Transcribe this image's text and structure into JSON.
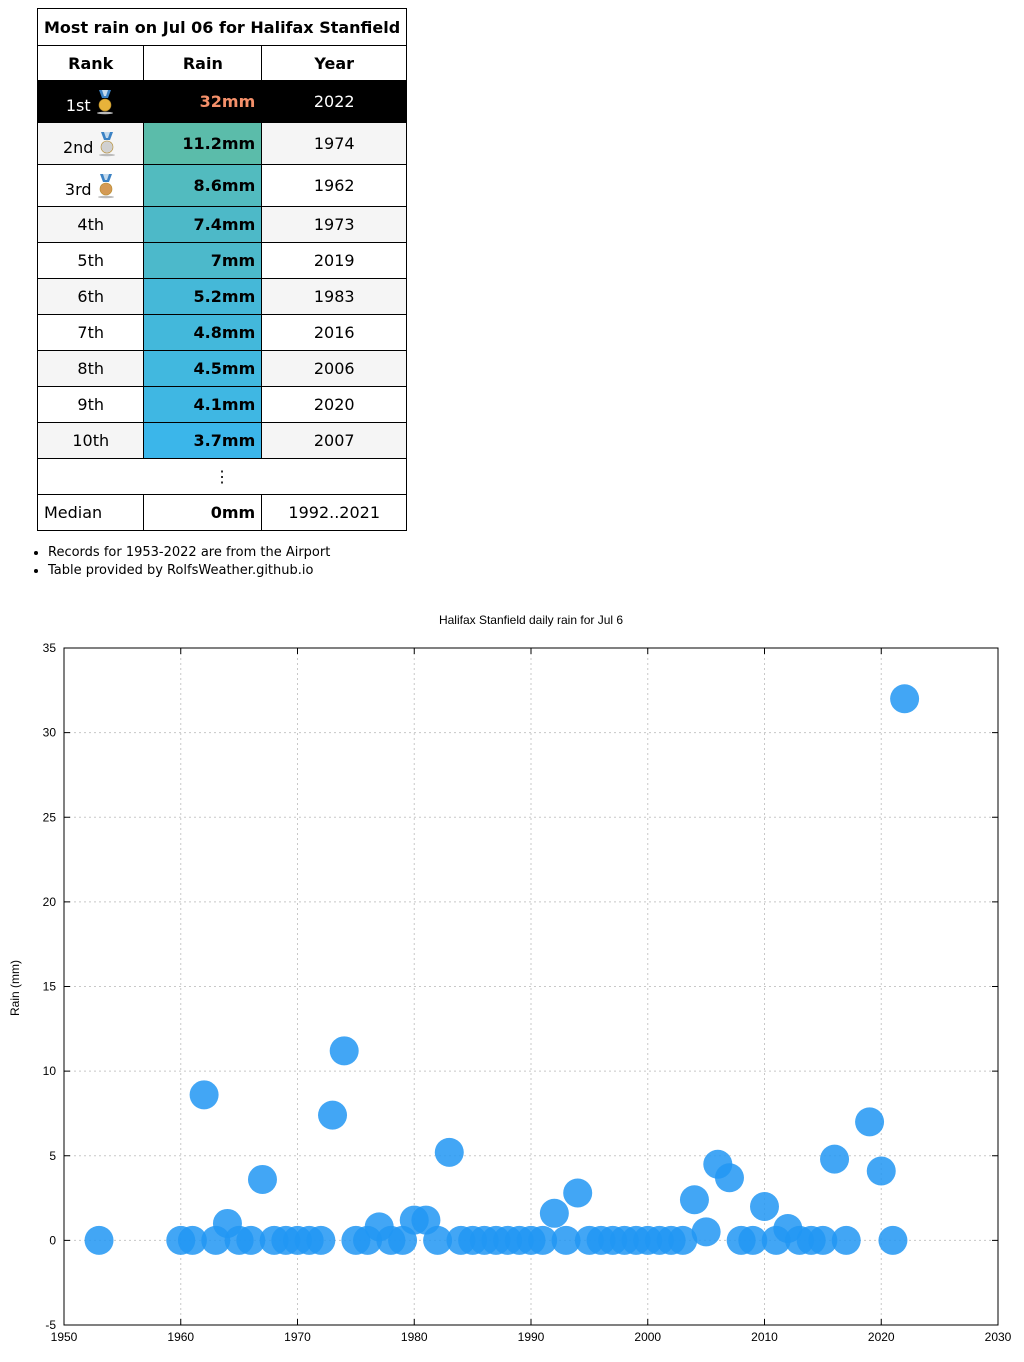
{
  "table": {
    "title": "Most rain on Jul 06 for Halifax Stanfield",
    "headers": {
      "rank": "Rank",
      "rain": "Rain",
      "year": "Year"
    },
    "rows": [
      {
        "rank": "1st",
        "rain": "32mm",
        "year": "2022",
        "medal": "gold",
        "color": "#000000"
      },
      {
        "rank": "2nd",
        "rain": "11.2mm",
        "year": "1974",
        "medal": "silver",
        "color": "#5bbcaa"
      },
      {
        "rank": "3rd",
        "rain": "8.6mm",
        "year": "1962",
        "medal": "bronze",
        "color": "#52bbbf"
      },
      {
        "rank": "4th",
        "rain": "7.4mm",
        "year": "1973",
        "color": "#4db9c8"
      },
      {
        "rank": "5th",
        "rain": "7mm",
        "year": "2019",
        "color": "#4cb9cb"
      },
      {
        "rank": "6th",
        "rain": "5.2mm",
        "year": "1983",
        "color": "#45b8d8"
      },
      {
        "rank": "7th",
        "rain": "4.8mm",
        "year": "2016",
        "color": "#43b8db"
      },
      {
        "rank": "8th",
        "rain": "4.5mm",
        "year": "2006",
        "color": "#41b8df"
      },
      {
        "rank": "9th",
        "rain": "4.1mm",
        "year": "2020",
        "color": "#3fb7e3"
      },
      {
        "rank": "10th",
        "rain": "3.7mm",
        "year": "2007",
        "color": "#3bb6ea"
      }
    ],
    "ellipsis": "⋮",
    "median": {
      "label": "Median",
      "rain": "0mm",
      "years": "1992..2021"
    }
  },
  "notes": [
    "Records for 1953-2022 are from the Airport",
    "Table provided by RolfsWeather.github.io"
  ],
  "chart_data": {
    "type": "scatter",
    "title": "Halifax Stanfield daily rain for Jul 6",
    "ylabel": "Rain (mm)",
    "xlabel": "",
    "xlim": [
      1950,
      2030
    ],
    "ylim": [
      -5,
      35
    ],
    "xticks": [
      1950,
      1960,
      1970,
      1980,
      1990,
      2000,
      2010,
      2020,
      2030
    ],
    "yticks": [
      -5,
      0,
      5,
      10,
      15,
      20,
      25,
      30,
      35
    ],
    "grid": true,
    "marker_color": "#2196f3",
    "points": [
      [
        1953,
        0
      ],
      [
        1960,
        0
      ],
      [
        1961,
        0
      ],
      [
        1962,
        8.6
      ],
      [
        1963,
        0
      ],
      [
        1964,
        1
      ],
      [
        1965,
        0
      ],
      [
        1966,
        0
      ],
      [
        1967,
        3.6
      ],
      [
        1968,
        0
      ],
      [
        1969,
        0
      ],
      [
        1970,
        0
      ],
      [
        1971,
        0
      ],
      [
        1972,
        0
      ],
      [
        1973,
        7.4
      ],
      [
        1974,
        11.2
      ],
      [
        1975,
        0
      ],
      [
        1976,
        0
      ],
      [
        1977,
        0.8
      ],
      [
        1978,
        0
      ],
      [
        1979,
        0
      ],
      [
        1980,
        1.2
      ],
      [
        1981,
        1.2
      ],
      [
        1982,
        0
      ],
      [
        1983,
        5.2
      ],
      [
        1984,
        0
      ],
      [
        1985,
        0
      ],
      [
        1986,
        0
      ],
      [
        1987,
        0
      ],
      [
        1988,
        0
      ],
      [
        1989,
        0
      ],
      [
        1990,
        0
      ],
      [
        1991,
        0
      ],
      [
        1992,
        1.6
      ],
      [
        1993,
        0
      ],
      [
        1994,
        2.8
      ],
      [
        1995,
        0
      ],
      [
        1996,
        0
      ],
      [
        1997,
        0
      ],
      [
        1998,
        0
      ],
      [
        1999,
        0
      ],
      [
        2000,
        0
      ],
      [
        2001,
        0
      ],
      [
        2002,
        0
      ],
      [
        2003,
        0
      ],
      [
        2004,
        2.4
      ],
      [
        2005,
        0.5
      ],
      [
        2006,
        4.5
      ],
      [
        2007,
        3.7
      ],
      [
        2008,
        0
      ],
      [
        2009,
        0
      ],
      [
        2010,
        2
      ],
      [
        2011,
        0
      ],
      [
        2012,
        0.7
      ],
      [
        2013,
        0
      ],
      [
        2014,
        0
      ],
      [
        2015,
        0
      ],
      [
        2016,
        4.8
      ],
      [
        2017,
        0
      ],
      [
        2019,
        7
      ],
      [
        2020,
        4.1
      ],
      [
        2021,
        0
      ],
      [
        2022,
        32
      ]
    ]
  }
}
